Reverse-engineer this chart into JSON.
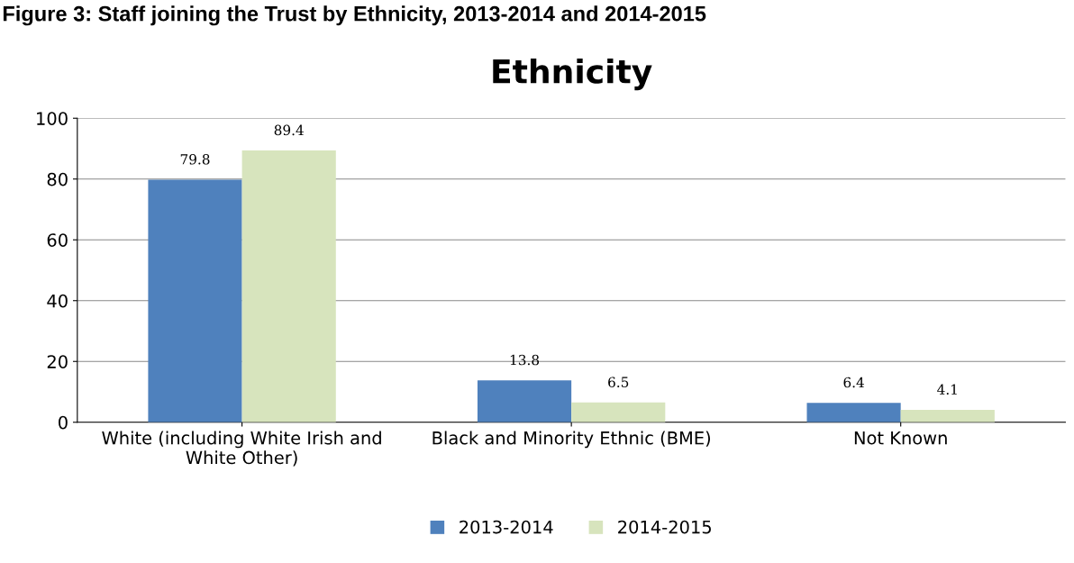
{
  "chart_data": {
    "type": "bar",
    "title": "Ethnicity",
    "subtitle": "Figure 3: Staff joining the Trust by Ethnicity, 2013-2014 and 2014-2015",
    "categories": [
      "White (including White Irish and\nWhite Other)",
      "Black and Minority Ethnic (BME)",
      "Not Known"
    ],
    "series": [
      {
        "name": "2013-2014",
        "color": "#4f81bd",
        "values": [
          79.8,
          13.8,
          6.4
        ]
      },
      {
        "name": "2014-2015",
        "color": "#d7e4bd",
        "values": [
          89.4,
          6.5,
          4.1
        ]
      }
    ],
    "ylim": [
      0,
      100
    ],
    "yticks": [
      0,
      20,
      40,
      60,
      80,
      100
    ],
    "grid": "y",
    "legend": "bottom",
    "data_labels": true
  }
}
